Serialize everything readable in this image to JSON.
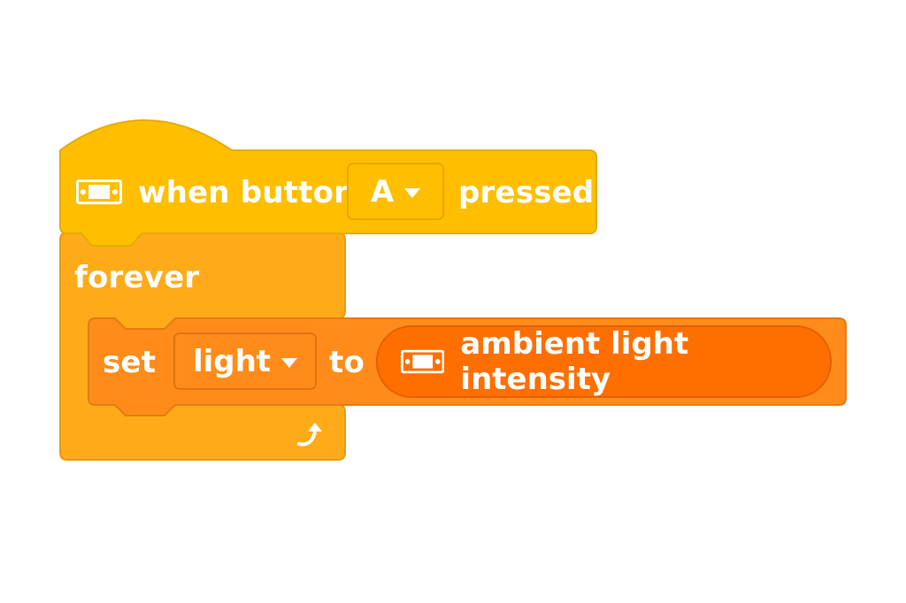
{
  "event_block": {
    "icon": "microbit-board-icon",
    "when_text": "when button",
    "button_value": "A",
    "pressed_text": "pressed",
    "color": "#FFBF00"
  },
  "forever_block": {
    "label": "forever",
    "loop_icon": "loop-arrow-icon",
    "color": "#FFAB19"
  },
  "set_block": {
    "set_text": "set",
    "variable_value": "light",
    "to_text": "to",
    "color": "#FF8C1A",
    "reporter": {
      "icon": "microbit-board-icon",
      "label": "ambient light intensity",
      "color": "#FF6F00"
    }
  }
}
